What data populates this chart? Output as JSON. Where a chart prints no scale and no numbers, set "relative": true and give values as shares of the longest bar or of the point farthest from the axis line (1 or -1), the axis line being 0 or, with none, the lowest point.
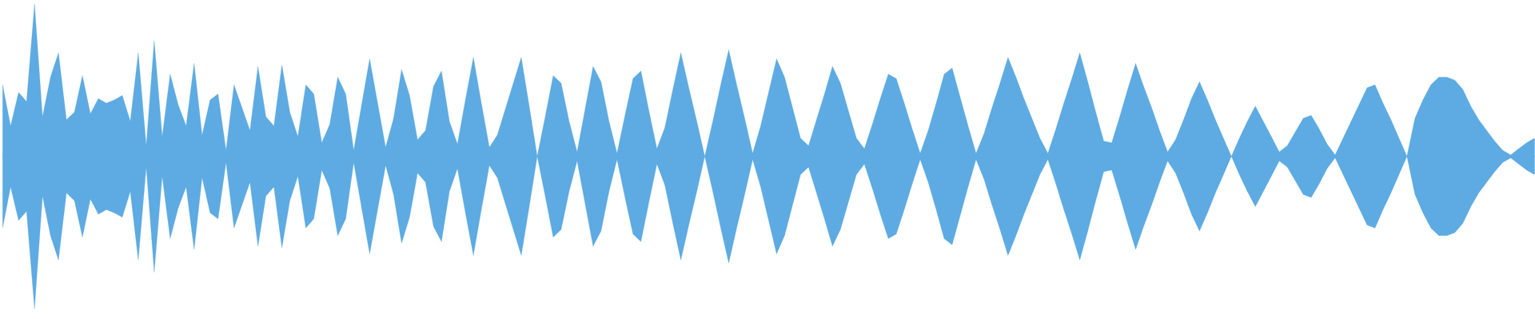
{
  "chart_data": {
    "type": "area",
    "relative": true,
    "categories": [
      null,
      null,
      null,
      null,
      null,
      null,
      null,
      null,
      null,
      null,
      null,
      null,
      null,
      null,
      null,
      null,
      null,
      null,
      null,
      null,
      null,
      null,
      null,
      null,
      null,
      null,
      null,
      null,
      null,
      null,
      null,
      null,
      null,
      null,
      null,
      null,
      null,
      null,
      null,
      null,
      null,
      null,
      null,
      null,
      null,
      null,
      null,
      null,
      null,
      null,
      null,
      null,
      null,
      null,
      null,
      null,
      null,
      null,
      null,
      null,
      null,
      null,
      null,
      null,
      null,
      null,
      null,
      null,
      null,
      null,
      null,
      null,
      null,
      null,
      null,
      null,
      null,
      null,
      null,
      null,
      null,
      null,
      null,
      null,
      null,
      null,
      null,
      null,
      null,
      null,
      null,
      null,
      null,
      null,
      null,
      null,
      null,
      null,
      null,
      null,
      null,
      null,
      null,
      null,
      null,
      null,
      null,
      null,
      null,
      null,
      null,
      null,
      null,
      null,
      null,
      null,
      null,
      null,
      null,
      null,
      null,
      null,
      null,
      null,
      null,
      null,
      null,
      null,
      null,
      null,
      null,
      null,
      null,
      null,
      null,
      null,
      null,
      null,
      null,
      null,
      null,
      null,
      null,
      null,
      null,
      null,
      null,
      null,
      null,
      null,
      null,
      null,
      null,
      null,
      null,
      null,
      null,
      null,
      null,
      null,
      null,
      null,
      null,
      null,
      null,
      null,
      null,
      null,
      null,
      null,
      null,
      null,
      null,
      null,
      null,
      null,
      null,
      null,
      null,
      null,
      null,
      null,
      null,
      null,
      null,
      null,
      null,
      null,
      null,
      null,
      null,
      null,
      null
    ],
    "ref_lines": [
      {
        "axis": "y",
        "value": 0,
        "color": "#5dabe2"
      }
    ],
    "series": [
      {
        "color": "#5dabe2",
        "values": [
          0.47,
          0.2,
          0.42,
          0.36,
          1.0,
          0.26,
          0.52,
          0.68,
          0.24,
          0.29,
          0.53,
          0.28,
          0.38,
          0.35,
          0.37,
          0.4,
          0.23,
          0.68,
          0.07,
          0.76,
          0.13,
          0.54,
          0.34,
          0.2,
          0.61,
          0.14,
          0.37,
          0.41,
          0.04,
          0.47,
          0.32,
          0.17,
          0.59,
          0.26,
          0.2,
          0.6,
          0.29,
          0.13,
          0.47,
          0.41,
          0.09,
          0.21,
          0.52,
          0.41,
          0.04,
          0.34,
          0.64,
          0.35,
          0.06,
          0.25,
          0.57,
          0.4,
          0.11,
          0.17,
          0.46,
          0.56,
          0.23,
          0.08,
          0.37,
          0.65,
          0.35,
          0.06,
          0.14,
          0.31,
          0.48,
          0.65,
          0.33,
          0,
          0.26,
          0.53,
          0.48,
          0.23,
          0.03,
          0.31,
          0.59,
          0.49,
          0.23,
          0.02,
          0.27,
          0.51,
          0.56,
          0.3,
          0.05,
          0.19,
          0.44,
          0.68,
          0.45,
          0.23,
          0,
          0.23,
          0.47,
          0.7,
          0.47,
          0.25,
          0.02,
          0.2,
          0.42,
          0.64,
          0.52,
          0.32,
          0.12,
          0.07,
          0.24,
          0.41,
          0.59,
          0.48,
          0.3,
          0.12,
          0.05,
          0.21,
          0.38,
          0.54,
          0.51,
          0.35,
          0.18,
          0.02,
          0.17,
          0.35,
          0.54,
          0.58,
          0.39,
          0.2,
          0.02,
          0.15,
          0.32,
          0.48,
          0.65,
          0.52,
          0.38,
          0.25,
          0.12,
          0.02,
          0.18,
          0.35,
          0.51,
          0.68,
          0.49,
          0.29,
          0.1,
          0.09,
          0.26,
          0.44,
          0.61,
          0.46,
          0.32,
          0.17,
          0.03,
          0.11,
          0.24,
          0.38,
          0.49,
          0.37,
          0.24,
          0.12,
          0,
          0.12,
          0.23,
          0.33,
          0.23,
          0.13,
          0.03,
          0.07,
          0.16,
          0.25,
          0.27,
          0.18,
          0.08,
          0.01,
          0.12,
          0.23,
          0.34,
          0.45,
          0.47,
          0.35,
          0.24,
          0.12,
          0,
          0.25,
          0.37,
          0.47,
          0.52,
          0.52,
          0.5,
          0.44,
          0.33,
          0.24,
          0.17,
          0.1,
          0.04,
          0.01,
          0.05,
          0.09,
          0.12
        ]
      },
      {
        "color": "#5dabe2",
        "values": [
          -0.47,
          -0.2,
          -0.42,
          -0.36,
          -1.0,
          -0.26,
          -0.52,
          -0.68,
          -0.24,
          -0.29,
          -0.53,
          -0.28,
          -0.38,
          -0.35,
          -0.37,
          -0.4,
          -0.23,
          -0.68,
          -0.07,
          -0.76,
          -0.13,
          -0.54,
          -0.34,
          -0.2,
          -0.61,
          -0.14,
          -0.37,
          -0.41,
          -0.04,
          -0.47,
          -0.32,
          -0.17,
          -0.59,
          -0.26,
          -0.2,
          -0.6,
          -0.29,
          -0.13,
          -0.47,
          -0.41,
          -0.09,
          -0.21,
          -0.52,
          -0.41,
          -0.04,
          -0.34,
          -0.64,
          -0.35,
          -0.06,
          -0.25,
          -0.57,
          -0.4,
          -0.11,
          -0.17,
          -0.46,
          -0.56,
          -0.23,
          -0.08,
          -0.37,
          -0.65,
          -0.35,
          -0.06,
          -0.14,
          -0.31,
          -0.48,
          -0.65,
          -0.33,
          0,
          -0.26,
          -0.53,
          -0.48,
          -0.23,
          -0.03,
          -0.31,
          -0.59,
          -0.49,
          -0.23,
          -0.02,
          -0.27,
          -0.51,
          -0.56,
          -0.3,
          -0.05,
          -0.19,
          -0.44,
          -0.68,
          -0.45,
          -0.23,
          0,
          -0.23,
          -0.47,
          -0.7,
          -0.47,
          -0.25,
          -0.02,
          -0.2,
          -0.42,
          -0.64,
          -0.52,
          -0.32,
          -0.12,
          -0.07,
          -0.24,
          -0.41,
          -0.59,
          -0.48,
          -0.3,
          -0.12,
          -0.05,
          -0.21,
          -0.38,
          -0.54,
          -0.51,
          -0.35,
          -0.18,
          -0.02,
          -0.17,
          -0.35,
          -0.54,
          -0.58,
          -0.39,
          -0.2,
          -0.02,
          -0.15,
          -0.32,
          -0.48,
          -0.65,
          -0.52,
          -0.38,
          -0.25,
          -0.12,
          -0.02,
          -0.18,
          -0.35,
          -0.51,
          -0.68,
          -0.49,
          -0.29,
          -0.1,
          -0.09,
          -0.26,
          -0.44,
          -0.61,
          -0.46,
          -0.32,
          -0.17,
          -0.03,
          -0.11,
          -0.24,
          -0.38,
          -0.49,
          -0.37,
          -0.24,
          -0.12,
          0,
          -0.12,
          -0.23,
          -0.33,
          -0.23,
          -0.13,
          -0.03,
          -0.07,
          -0.16,
          -0.25,
          -0.27,
          -0.18,
          -0.08,
          -0.01,
          -0.12,
          -0.23,
          -0.34,
          -0.45,
          -0.47,
          -0.35,
          -0.24,
          -0.12,
          0,
          -0.25,
          -0.37,
          -0.47,
          -0.52,
          -0.52,
          -0.5,
          -0.44,
          -0.33,
          -0.24,
          -0.17,
          -0.1,
          -0.04,
          -0.01,
          -0.05,
          -0.09,
          -0.12
        ]
      }
    ]
  }
}
